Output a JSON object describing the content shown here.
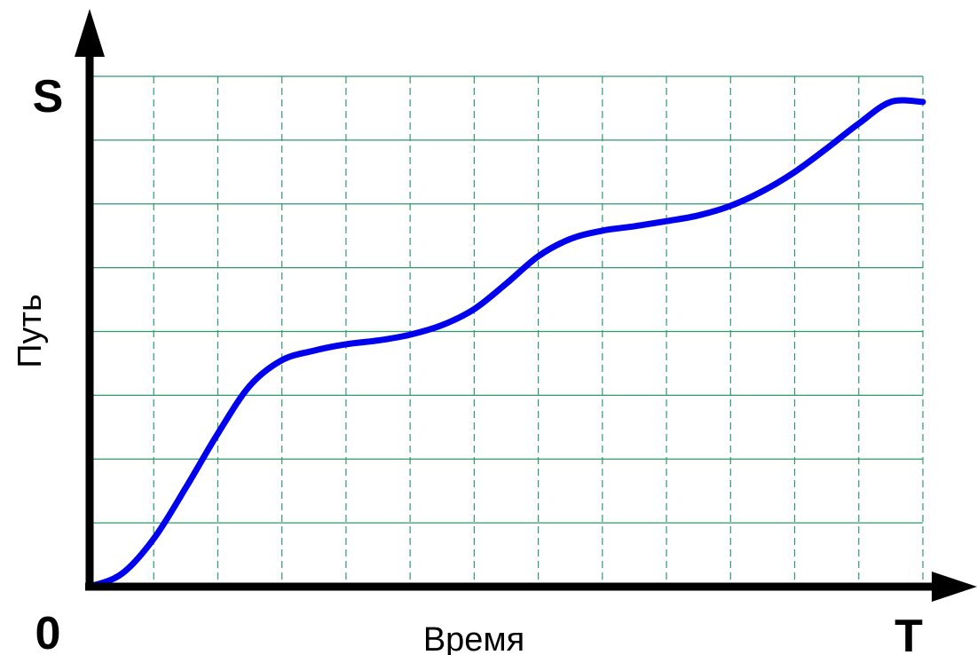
{
  "chart_data": {
    "type": "line",
    "title": "",
    "xlabel": "Время",
    "ylabel": "Путь",
    "x_start_label": "0",
    "x_end_label": "T",
    "y_end_label": "S",
    "grid": true,
    "x_divisions": 13,
    "y_divisions": 8,
    "xlim": [
      0,
      13
    ],
    "ylim": [
      0,
      8
    ],
    "colors": {
      "series": "#0000ee",
      "grid": "#2e9a6c",
      "axes": "#000000"
    },
    "series": [
      {
        "x": [
          0,
          0.5,
          1,
          1.5,
          2,
          2.5,
          3,
          3.5,
          4,
          4.5,
          5,
          5.5,
          6,
          6.5,
          7,
          7.5,
          8,
          8.5,
          9,
          9.5,
          10,
          10.5,
          11,
          11.5,
          12,
          12.5,
          13
        ],
        "y": [
          0,
          0.2,
          0.75,
          1.55,
          2.4,
          3.15,
          3.55,
          3.7,
          3.8,
          3.86,
          3.95,
          4.1,
          4.35,
          4.75,
          5.18,
          5.45,
          5.58,
          5.65,
          5.73,
          5.82,
          5.97,
          6.2,
          6.5,
          6.87,
          7.26,
          7.6,
          7.6
        ]
      }
    ]
  }
}
